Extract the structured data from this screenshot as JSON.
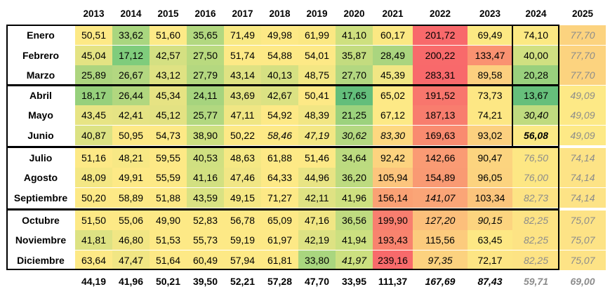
{
  "years": [
    "2013",
    "2014",
    "2015",
    "2016",
    "2017",
    "2018",
    "2019",
    "2020",
    "2021",
    "2022",
    "2023",
    "2024",
    "2025"
  ],
  "months": [
    "Enero",
    "Febrero",
    "Marzo",
    "Abril",
    "Mayo",
    "Junio",
    "Julio",
    "Agosto",
    "Septiembre",
    "Octubre",
    "Noviembre",
    "Diciembre"
  ],
  "values": [
    [
      "50,51",
      "33,62",
      "51,60",
      "35,65",
      "71,49",
      "49,98",
      "61,99",
      "41,10",
      "60,17",
      "201,72",
      "69,49",
      "74,10",
      "77,70"
    ],
    [
      "45,04",
      "17,12",
      "42,57",
      "27,50",
      "51,74",
      "54,88",
      "54,01",
      "35,87",
      "28,49",
      "200,22",
      "133,47",
      "40,00",
      "77,70"
    ],
    [
      "25,89",
      "26,67",
      "43,12",
      "27,79",
      "43,14",
      "40,13",
      "48,75",
      "27,70",
      "45,39",
      "283,31",
      "89,58",
      "20,28",
      "77,70"
    ],
    [
      "18,17",
      "26,44",
      "45,34",
      "24,11",
      "43,69",
      "42,67",
      "50,41",
      "17,65",
      "65,02",
      "191,52",
      "73,73",
      "13,67",
      "49,09"
    ],
    [
      "43,45",
      "42,41",
      "45,12",
      "25,77",
      "47,11",
      "54,92",
      "48,39",
      "21,25",
      "67,12",
      "187,13",
      "74,21",
      "30,40",
      "49,09"
    ],
    [
      "40,87",
      "50,95",
      "54,73",
      "38,90",
      "50,22",
      "58,46",
      "47,19",
      "30,62",
      "83,30",
      "169,63",
      "93,02",
      "56,08",
      "49,09"
    ],
    [
      "51,16",
      "48,21",
      "59,55",
      "40,53",
      "48,63",
      "61,88",
      "51,46",
      "34,64",
      "92,42",
      "142,66",
      "90,47",
      "76,50",
      "74,14"
    ],
    [
      "48,09",
      "49,91",
      "55,59",
      "41,16",
      "47,46",
      "64,33",
      "44,96",
      "36,20",
      "105,94",
      "154,89",
      "96,05",
      "76,00",
      "74,14"
    ],
    [
      "50,20",
      "58,89",
      "51,88",
      "43,59",
      "49,15",
      "71,27",
      "42,11",
      "41,96",
      "156,14",
      "141,07",
      "103,34",
      "82,73",
      "74,14"
    ],
    [
      "51,50",
      "55,06",
      "49,90",
      "52,83",
      "56,78",
      "65,09",
      "47,16",
      "36,56",
      "199,90",
      "127,20",
      "90,15",
      "82,25",
      "75,07"
    ],
    [
      "41,81",
      "46,80",
      "51,53",
      "55,73",
      "59,19",
      "61,97",
      "42,19",
      "41,94",
      "193,43",
      "115,56",
      "63,45",
      "82,25",
      "75,07"
    ],
    [
      "63,64",
      "47,47",
      "51,64",
      "60,49",
      "57,94",
      "61,81",
      "33,80",
      "41,97",
      "239,16",
      "97,35",
      "72,17",
      "82,25",
      "75,07"
    ]
  ],
  "annual_avg": [
    "44,19",
    "41,96",
    "50,21",
    "39,50",
    "52,21",
    "57,28",
    "47,70",
    "33,95",
    "111,37",
    "167,69",
    "87,43",
    "59,71",
    "69,00"
  ],
  "cell_colors": [
    [
      "#fde986",
      "#a9d67f",
      "#fdea87",
      "#b2d880",
      "#f8e984",
      "#fde986",
      "#fbe883",
      "#cee07f",
      "#fbe883",
      "#f8696b",
      "#fce983",
      "#fce983",
      "#fcd37f"
    ],
    [
      "#e4e383",
      "#7fcc7c",
      "#d4e082",
      "#b9da7f",
      "#fde986",
      "#fde986",
      "#fde986",
      "#c3dc7f",
      "#aad57f",
      "#f86a6b",
      "#fa9271",
      "#d0e081",
      "#fcd37f"
    ],
    [
      "#add57f",
      "#b3d781",
      "#dfe283",
      "#b4d880",
      "#dfe283",
      "#d5e082",
      "#f3e784",
      "#b3d881",
      "#f1e684",
      "#f8696b",
      "#fcd07f",
      "#99d07d",
      "#fcd37f"
    ],
    [
      "#96d07c",
      "#b1d77f",
      "#e6e383",
      "#a6d47e",
      "#e1e283",
      "#dbe283",
      "#fde986",
      "#63be7b",
      "#fde986",
      "#f8766d",
      "#fde784",
      "#66bf7b",
      "#fde986"
    ],
    [
      "#e7e484",
      "#e5e384",
      "#e3e283",
      "#b2d880",
      "#f0e684",
      "#fde986",
      "#f1e684",
      "#9cd27d",
      "#fde986",
      "#f87d6e",
      "#fde784",
      "#bfdb7f",
      "#fde986"
    ],
    [
      "#dce283",
      "#fde986",
      "#fde986",
      "#cde080",
      "#fde986",
      "#fde986",
      "#f3e784",
      "#b3d880",
      "#fdd880",
      "#f98b70",
      "#fcd07f",
      "#fbe985",
      "#fde986"
    ],
    [
      "#fde986",
      "#f7e885",
      "#fde986",
      "#d0e081",
      "#f5e884",
      "#fde986",
      "#fde986",
      "#bcdb80",
      "#fcd37f",
      "#fa9b74",
      "#fcd47f",
      "#fde784",
      "#fde386"
    ],
    [
      "#f4e784",
      "#fde986",
      "#fde986",
      "#d2e081",
      "#f1e685",
      "#fde986",
      "#e8e484",
      "#bddb80",
      "#fcc57d",
      "#f99a73",
      "#fcd37f",
      "#fde784",
      "#fde386"
    ],
    [
      "#fde986",
      "#fde986",
      "#fde986",
      "#d9e283",
      "#f5e884",
      "#fde986",
      "#dfe283",
      "#cee080",
      "#faa174",
      "#faa577",
      "#fbc57c",
      "#fde384",
      "#fde386"
    ],
    [
      "#fde986",
      "#fde986",
      "#fde986",
      "#fde986",
      "#fde986",
      "#fde986",
      "#f1e684",
      "#bfdb80",
      "#f87e6f",
      "#fcbf7b",
      "#fcd47f",
      "#fde384",
      "#fde386"
    ],
    [
      "#dde283",
      "#f1e684",
      "#fde986",
      "#fde986",
      "#fde986",
      "#fde986",
      "#dde283",
      "#cce080",
      "#f8836e",
      "#fccb7d",
      "#fde884",
      "#fde384",
      "#fde386"
    ],
    [
      "#fde986",
      "#f1e684",
      "#fde986",
      "#fde986",
      "#fde986",
      "#fde986",
      "#a9d67f",
      "#cce080",
      "#f86a6b",
      "#fcd27f",
      "#fde584",
      "#fde384",
      "#fde386"
    ]
  ],
  "italic_cells": [
    "5,5",
    "5,6",
    "5,7",
    "5,8",
    "9,9",
    "9,10",
    "9,11",
    "11,7",
    "11,9",
    "8,9",
    "6,11",
    "4,11",
    "5,11"
  ],
  "bold_cells": [
    "5,11"
  ],
  "projected_from": {
    "col_2024_row": 6,
    "col_2025_row": 0
  },
  "avg_italic": [
    9,
    10
  ],
  "avg_projected": [
    11,
    12
  ]
}
